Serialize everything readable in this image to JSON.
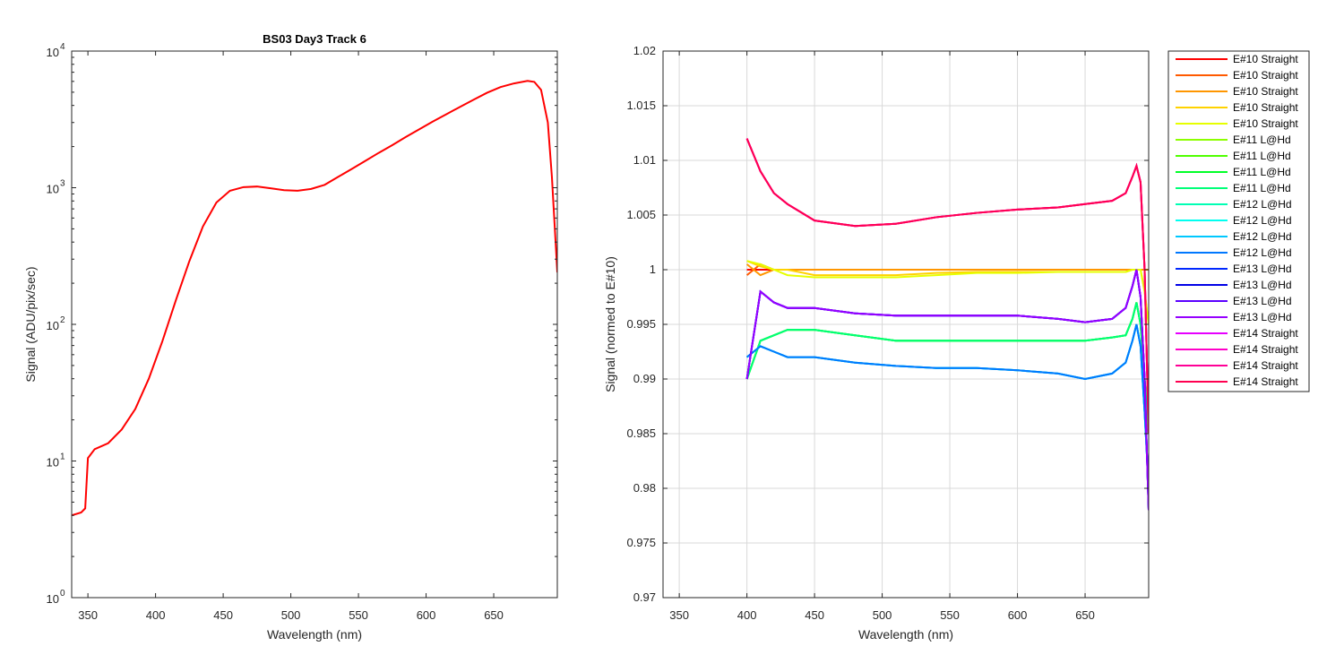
{
  "colors": {
    "axis": "#262626",
    "grid": "#d9d9d9",
    "series": [
      "#ff0000",
      "#ff5a00",
      "#ff9600",
      "#ffd200",
      "#e6ff00",
      "#8cff00",
      "#50ff00",
      "#00ff28",
      "#00ff78",
      "#00ffb4",
      "#00fff0",
      "#00c8ff",
      "#0078ff",
      "#0028ff",
      "#0000e6",
      "#5a00ff",
      "#9600ff",
      "#e600ff",
      "#ff00c8",
      "#ff0096",
      "#ff0050"
    ]
  },
  "chart_data": [
    {
      "type": "line",
      "title": "BS03 Day3 Track 6",
      "xlabel": "Wavelength (nm)",
      "ylabel": "Signal (ADU/pix/sec)",
      "xlim": [
        338,
        697
      ],
      "ylim": [
        1,
        10000
      ],
      "yscale": "log",
      "grid": false,
      "x_ticks": [
        "350",
        "400",
        "450",
        "500",
        "550",
        "600",
        "650"
      ],
      "y_ticks": [
        "10",
        "10",
        "10",
        "10",
        "10"
      ],
      "y_tick_exponents": [
        "0",
        "1",
        "2",
        "3",
        "4"
      ],
      "x": [
        338,
        345,
        348,
        350,
        355,
        365,
        375,
        385,
        395,
        405,
        415,
        425,
        435,
        445,
        455,
        465,
        475,
        485,
        495,
        505,
        515,
        525,
        535,
        545,
        555,
        565,
        575,
        585,
        595,
        605,
        615,
        625,
        635,
        645,
        655,
        665,
        675,
        680,
        685,
        690,
        693,
        697
      ],
      "series": [
        {
          "y": [
            4.0,
            4.2,
            4.5,
            10.5,
            12.2,
            13.5,
            17.0,
            24.0,
            40.0,
            75.0,
            150.0,
            290.0,
            520.0,
            780.0,
            950.0,
            1010.0,
            1020.0,
            990.0,
            960.0,
            950.0,
            980.0,
            1050.0,
            1200.0,
            1370.0,
            1570.0,
            1800.0,
            2050.0,
            2350.0,
            2680.0,
            3050.0,
            3450.0,
            3900.0,
            4400.0,
            4950.0,
            5450.0,
            5800.0,
            6050.0,
            5950.0,
            5200.0,
            3000.0,
            1200.0,
            240.0
          ]
        }
      ]
    },
    {
      "type": "line",
      "title": "",
      "xlabel": "Wavelength (nm)",
      "ylabel": "Signal (normed to E#10)",
      "xlim": [
        338,
        697
      ],
      "ylim": [
        0.97,
        1.02
      ],
      "grid": true,
      "legend_location": "outside-top-right",
      "x_ticks": [
        "350",
        "400",
        "450",
        "500",
        "550",
        "600",
        "650"
      ],
      "y_ticks": [
        "0.97",
        "0.975",
        "0.98",
        "0.985",
        "0.99",
        "0.995",
        "1",
        "1.005",
        "1.01",
        "1.015",
        "1.02"
      ],
      "x": [
        400,
        410,
        420,
        430,
        450,
        480,
        510,
        540,
        570,
        600,
        630,
        650,
        670,
        680,
        685,
        688,
        691,
        694,
        697
      ],
      "series": [
        {
          "name": "E#10 Straight",
          "y": [
            1.0,
            1.0,
            1.0,
            1.0,
            1.0,
            1.0,
            1.0,
            1.0,
            1.0,
            1.0,
            1.0,
            1.0,
            1.0,
            1.0,
            1.0,
            1.0,
            1.0,
            1.0,
            1.0
          ]
        },
        {
          "name": "E#10 Straight",
          "y": [
            0.9995,
            1.0005,
            1.0,
            1.0,
            1.0,
            1.0,
            1.0,
            1.0,
            1.0,
            1.0,
            1.0,
            1.0,
            1.0,
            1.0,
            1.0,
            1.0,
            1.0,
            1.0,
            1.0
          ]
        },
        {
          "name": "E#10 Straight",
          "y": [
            1.0005,
            0.9995,
            1.0,
            1.0,
            1.0,
            1.0,
            1.0,
            1.0,
            1.0,
            1.0,
            1.0,
            1.0,
            1.0,
            1.0,
            1.0,
            1.0,
            1.0,
            1.0,
            1.0
          ]
        },
        {
          "name": "E#10 Straight",
          "y": [
            1.0008,
            1.0003,
            1.0,
            1.0,
            0.9995,
            0.9995,
            0.9995,
            0.9997,
            0.9998,
            0.9998,
            0.9998,
            0.9998,
            0.9998,
            0.9998,
            1.0,
            1.0,
            1.0,
            0.998,
            0.995
          ]
        },
        {
          "name": "E#10 Straight",
          "y": [
            1.0008,
            1.0005,
            1.0,
            0.9995,
            0.9993,
            0.9993,
            0.9993,
            0.9995,
            0.9997,
            0.9997,
            0.9998,
            0.9998,
            0.9998,
            0.9998,
            1.0,
            1.0,
            1.0,
            0.998,
            0.995
          ]
        },
        {
          "name": "E#11 L@Hd",
          "y": [
            0.99,
            0.9935,
            0.994,
            0.9945,
            0.9945,
            0.994,
            0.9935,
            0.9935,
            0.9935,
            0.9935,
            0.9935,
            0.9935,
            0.9938,
            0.994,
            0.9955,
            0.997,
            0.995,
            0.99,
            0.985
          ]
        },
        {
          "name": "E#11 L@Hd",
          "y": [
            0.99,
            0.9935,
            0.994,
            0.9945,
            0.9945,
            0.994,
            0.9935,
            0.9935,
            0.9935,
            0.9935,
            0.9935,
            0.9935,
            0.9938,
            0.994,
            0.9955,
            0.997,
            0.995,
            0.99,
            0.985
          ]
        },
        {
          "name": "E#11 L@Hd",
          "y": [
            0.99,
            0.9935,
            0.994,
            0.9945,
            0.9945,
            0.994,
            0.9935,
            0.9935,
            0.9935,
            0.9935,
            0.9935,
            0.9935,
            0.9938,
            0.994,
            0.9955,
            0.997,
            0.995,
            0.99,
            0.985
          ]
        },
        {
          "name": "E#11 L@Hd",
          "y": [
            0.99,
            0.9935,
            0.994,
            0.9945,
            0.9945,
            0.994,
            0.9935,
            0.9935,
            0.9935,
            0.9935,
            0.9935,
            0.9935,
            0.9938,
            0.994,
            0.9955,
            0.997,
            0.995,
            0.99,
            0.985
          ]
        },
        {
          "name": "E#12 L@Hd",
          "y": [
            0.992,
            0.993,
            0.9925,
            0.992,
            0.992,
            0.9915,
            0.9912,
            0.991,
            0.991,
            0.9908,
            0.9905,
            0.99,
            0.9905,
            0.9915,
            0.9935,
            0.995,
            0.993,
            0.987,
            0.98
          ]
        },
        {
          "name": "E#12 L@Hd",
          "y": [
            0.992,
            0.993,
            0.9925,
            0.992,
            0.992,
            0.9915,
            0.9912,
            0.991,
            0.991,
            0.9908,
            0.9905,
            0.99,
            0.9905,
            0.9915,
            0.9935,
            0.995,
            0.993,
            0.987,
            0.98
          ]
        },
        {
          "name": "E#12 L@Hd",
          "y": [
            0.992,
            0.993,
            0.9925,
            0.992,
            0.992,
            0.9915,
            0.9912,
            0.991,
            0.991,
            0.9908,
            0.9905,
            0.99,
            0.9905,
            0.9915,
            0.9935,
            0.995,
            0.993,
            0.987,
            0.98
          ]
        },
        {
          "name": "E#12 L@Hd",
          "y": [
            0.992,
            0.993,
            0.9925,
            0.992,
            0.992,
            0.9915,
            0.9912,
            0.991,
            0.991,
            0.9908,
            0.9905,
            0.99,
            0.9905,
            0.9915,
            0.9935,
            0.995,
            0.993,
            0.987,
            0.98
          ]
        },
        {
          "name": "E#13 L@Hd",
          "y": [
            0.99,
            0.998,
            0.997,
            0.9965,
            0.9965,
            0.996,
            0.9958,
            0.9958,
            0.9958,
            0.9958,
            0.9955,
            0.9952,
            0.9955,
            0.9965,
            0.9985,
            1.0,
            0.9975,
            0.99,
            0.978
          ]
        },
        {
          "name": "E#13 L@Hd",
          "y": [
            0.99,
            0.998,
            0.997,
            0.9965,
            0.9965,
            0.996,
            0.9958,
            0.9958,
            0.9958,
            0.9958,
            0.9955,
            0.9952,
            0.9955,
            0.9965,
            0.9985,
            1.0,
            0.9975,
            0.99,
            0.978
          ]
        },
        {
          "name": "E#13 L@Hd",
          "y": [
            0.99,
            0.998,
            0.997,
            0.9965,
            0.9965,
            0.996,
            0.9958,
            0.9958,
            0.9958,
            0.9958,
            0.9955,
            0.9952,
            0.9955,
            0.9965,
            0.9985,
            1.0,
            0.9975,
            0.99,
            0.978
          ]
        },
        {
          "name": "E#13 L@Hd",
          "y": [
            0.99,
            0.998,
            0.997,
            0.9965,
            0.9965,
            0.996,
            0.9958,
            0.9958,
            0.9958,
            0.9958,
            0.9955,
            0.9952,
            0.9955,
            0.9965,
            0.9985,
            1.0,
            0.9975,
            0.99,
            0.978
          ]
        },
        {
          "name": "E#14 Straight",
          "y": [
            1.012,
            1.009,
            1.007,
            1.006,
            1.0045,
            1.004,
            1.0042,
            1.0048,
            1.0052,
            1.0055,
            1.0057,
            1.006,
            1.0063,
            1.007,
            1.0085,
            1.0095,
            1.008,
            1.0,
            0.985
          ]
        },
        {
          "name": "E#14 Straight",
          "y": [
            1.012,
            1.009,
            1.007,
            1.006,
            1.0045,
            1.004,
            1.0042,
            1.0048,
            1.0052,
            1.0055,
            1.0057,
            1.006,
            1.0063,
            1.007,
            1.0085,
            1.0095,
            1.008,
            1.0,
            0.985
          ]
        },
        {
          "name": "E#14 Straight",
          "y": [
            1.012,
            1.009,
            1.007,
            1.006,
            1.0045,
            1.004,
            1.0042,
            1.0048,
            1.0052,
            1.0055,
            1.0057,
            1.006,
            1.0063,
            1.007,
            1.0085,
            1.0095,
            1.008,
            1.0,
            0.985
          ]
        },
        {
          "name": "E#14 Straight",
          "y": [
            1.012,
            1.009,
            1.007,
            1.006,
            1.0045,
            1.004,
            1.0042,
            1.0048,
            1.0052,
            1.0055,
            1.0057,
            1.006,
            1.0063,
            1.007,
            1.0085,
            1.0095,
            1.008,
            1.0,
            0.985
          ]
        }
      ]
    }
  ]
}
